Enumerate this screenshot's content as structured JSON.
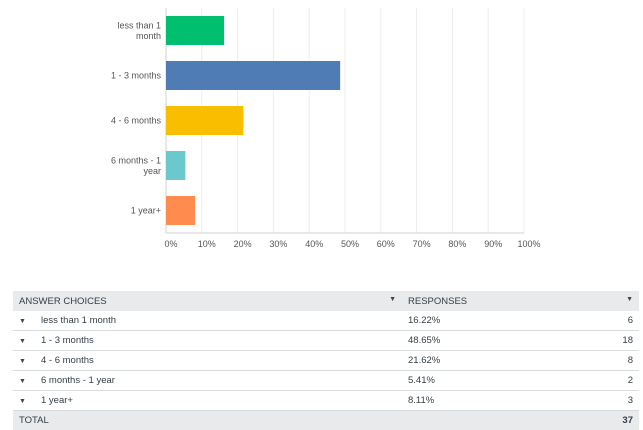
{
  "chart_data": {
    "type": "bar",
    "orientation": "horizontal",
    "categories": [
      "less than 1 month",
      "1 - 3 months",
      "4 - 6 months",
      "6 months - 1 year",
      "1 year+"
    ],
    "category_lines": [
      [
        "less than 1",
        "month"
      ],
      [
        "1 - 3 months"
      ],
      [
        "4 - 6 months"
      ],
      [
        "6 months - 1",
        "year"
      ],
      [
        "1 year+"
      ]
    ],
    "values": [
      16.22,
      48.65,
      21.62,
      5.41,
      8.11
    ],
    "colors": [
      "#00bf6f",
      "#507cb6",
      "#f9be00",
      "#6bc8cd",
      "#ff8b4f"
    ],
    "xlim": [
      0,
      100
    ],
    "xticks": [
      "0%",
      "10%",
      "20%",
      "30%",
      "40%",
      "50%",
      "60%",
      "70%",
      "80%",
      "90%",
      "100%"
    ],
    "grid": true,
    "title": "",
    "xlabel": "",
    "ylabel": ""
  },
  "table": {
    "headers": {
      "choices": "ANSWER CHOICES",
      "responses": "RESPONSES"
    },
    "rows": [
      {
        "choice": "less than 1 month",
        "percent": "16.22%",
        "count": "6"
      },
      {
        "choice": "1 - 3 months",
        "percent": "48.65%",
        "count": "18"
      },
      {
        "choice": "4 - 6 months",
        "percent": "21.62%",
        "count": "8"
      },
      {
        "choice": "6 months - 1 year",
        "percent": "5.41%",
        "count": "2"
      },
      {
        "choice": "1 year+",
        "percent": "8.11%",
        "count": "3"
      }
    ],
    "total": {
      "label": "TOTAL",
      "count": "37"
    }
  },
  "icons": {
    "sort": "caret-down-icon",
    "row_toggle": "caret-down-icon"
  }
}
